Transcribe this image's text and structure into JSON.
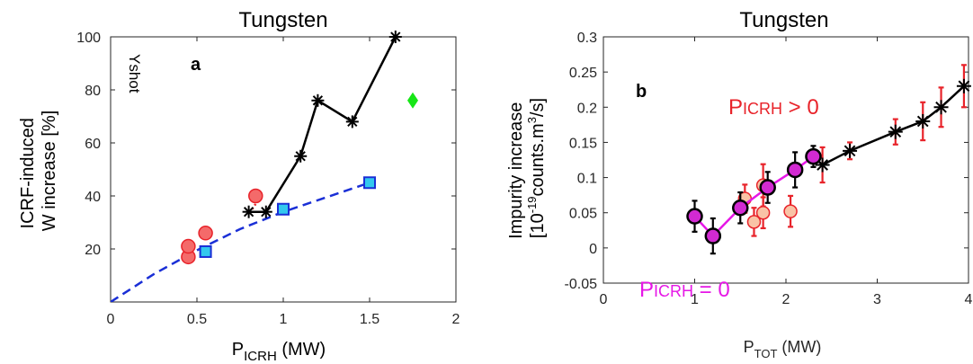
{
  "chart_data": [
    {
      "type": "scatter",
      "panel_label": "a",
      "title": "Tungsten",
      "xlabel_main": "P",
      "xlabel_sub": "ICRH",
      "xlabel_unit": " (MW)",
      "ylabel_lines": [
        "ICRF-induced",
        "W increase [%]"
      ],
      "xlim": [
        0,
        2
      ],
      "ylim": [
        0,
        100
      ],
      "xticks": [
        0,
        0.5,
        1,
        1.5,
        2
      ],
      "xticklabels": [
        "0",
        "0.5",
        "1",
        "1.5",
        "2"
      ],
      "yticks": [
        20,
        40,
        60,
        80,
        100
      ],
      "yticklabels": [
        "20",
        "40",
        "60",
        "80",
        "100"
      ],
      "annotation": "Yshot",
      "series": [
        {
          "style": "black-star-line",
          "color": "#000000",
          "x": [
            0.8,
            0.9,
            1.1,
            1.2,
            1.4,
            1.65
          ],
          "y": [
            34,
            34,
            55,
            76,
            68,
            100
          ]
        },
        {
          "style": "red-dotted",
          "color": "#e8232a",
          "x": [
            0.82,
            0.86
          ],
          "y": [
            35,
            39
          ]
        },
        {
          "style": "red-circles",
          "color": "#e8232a",
          "fill": "#f46a6a",
          "x": [
            0.45,
            0.45,
            0.55,
            0.84
          ],
          "y": [
            17,
            21,
            26,
            40
          ]
        },
        {
          "style": "cyan-squares",
          "color": "#1a2fd6",
          "fill": "#33c8ee",
          "x": [
            0.55,
            1.0,
            1.5
          ],
          "y": [
            19,
            35,
            45
          ]
        },
        {
          "style": "blue-dashed-fit",
          "color": "#1a2fd6",
          "x": [
            0,
            0.25,
            0.5,
            0.75,
            1.0,
            1.25,
            1.5
          ],
          "y": [
            0,
            10.5,
            19.5,
            27.5,
            34,
            39.5,
            45
          ]
        },
        {
          "style": "green-diamond",
          "color": "#17e617",
          "x": [
            1.75
          ],
          "y": [
            76
          ]
        }
      ]
    },
    {
      "type": "scatter",
      "panel_label": "b",
      "title": "Tungsten",
      "xlabel_main": "P",
      "xlabel_sub": "TOT",
      "xlabel_unit": " (MW)",
      "ylabel_line1": "Impurity increase",
      "ylabel_line2_pre": "[10",
      "ylabel_line2_sup": "-19",
      "ylabel_line2_post": "counts.m",
      "ylabel_line2_sup2": "3",
      "ylabel_line2_end": "/s]",
      "xlim": [
        0,
        4
      ],
      "ylim": [
        -0.05,
        0.3
      ],
      "xticks": [
        0,
        1,
        2,
        3,
        4
      ],
      "xticklabels": [
        "0",
        "1",
        "2",
        "3",
        "4"
      ],
      "yticks": [
        -0.05,
        0,
        0.05,
        0.1,
        0.15,
        0.2,
        0.25,
        0.3
      ],
      "yticklabels": [
        "-0.05",
        "0",
        "0.05",
        "0.1",
        "0.15",
        "0.2",
        "0.25",
        "0.3"
      ],
      "legend_pos_main": "P",
      "legend_pos_sub": "ICRH",
      "legend_pos_rest": " > 0",
      "legend_zero_main": "P",
      "legend_zero_sub": "ICRH",
      "legend_zero_rest": " = 0",
      "series": [
        {
          "style": "black-star-line",
          "color": "#000000",
          "x": [
            2.4,
            2.7,
            3.2,
            3.5,
            3.7,
            3.95
          ],
          "y": [
            0.118,
            0.138,
            0.165,
            0.18,
            0.2,
            0.23
          ],
          "err": [
            0.025,
            0.012,
            0.018,
            0.027,
            0.028,
            0.03
          ],
          "err_color": "#e8232a"
        },
        {
          "style": "orange-circles-err",
          "color": "#e8232a",
          "fill": "#f9c3a6",
          "x": [
            1.55,
            1.65,
            1.75,
            1.75,
            2.05
          ],
          "y": [
            0.07,
            0.037,
            0.05,
            0.089,
            0.052
          ],
          "err": [
            0.02,
            0.02,
            0.022,
            0.03,
            0.022
          ]
        },
        {
          "style": "magenta-line-circles",
          "color": "#e617e6",
          "fill": "#d22ad2",
          "x": [
            1.0,
            1.2,
            1.5,
            1.8,
            2.1,
            2.3
          ],
          "y": [
            0.045,
            0.017,
            0.057,
            0.086,
            0.111,
            0.13
          ],
          "err": [
            0.022,
            0.025,
            0.022,
            0.022,
            0.025,
            0.015
          ]
        }
      ]
    }
  ]
}
